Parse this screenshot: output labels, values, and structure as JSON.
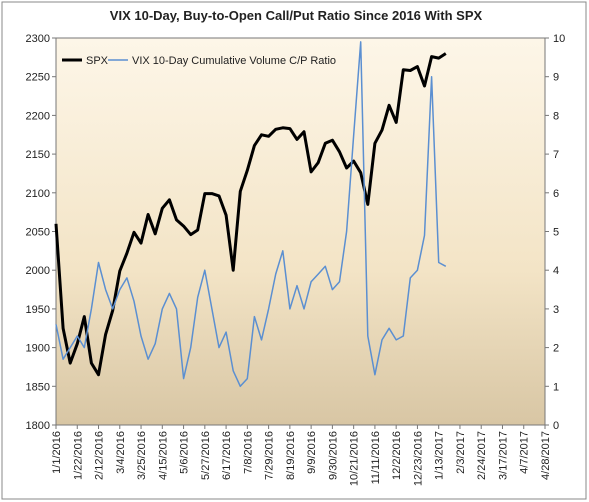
{
  "chart_data": {
    "type": "line",
    "title": "VIX 10-Day, Buy-to-Open Call/Put Ratio Since 2016 With SPX",
    "x": [
      "1/1/2016",
      "1/8/2016",
      "1/15/2016",
      "1/22/2016",
      "1/29/2016",
      "2/5/2016",
      "2/12/2016",
      "2/19/2016",
      "2/26/2016",
      "3/4/2016",
      "3/11/2016",
      "3/18/2016",
      "3/25/2016",
      "4/1/2016",
      "4/8/2016",
      "4/15/2016",
      "4/22/2016",
      "4/29/2016",
      "5/6/2016",
      "5/13/2016",
      "5/20/2016",
      "5/27/2016",
      "6/3/2016",
      "6/10/2016",
      "6/17/2016",
      "6/24/2016",
      "7/1/2016",
      "7/8/2016",
      "7/15/2016",
      "7/22/2016",
      "7/29/2016",
      "8/5/2016",
      "8/12/2016",
      "8/19/2016",
      "8/26/2016",
      "9/2/2016",
      "9/9/2016",
      "9/16/2016",
      "9/23/2016",
      "9/30/2016",
      "10/7/2016",
      "10/14/2016",
      "10/21/2016",
      "10/28/2016",
      "11/4/2016",
      "11/11/2016",
      "11/18/2016",
      "11/25/2016",
      "12/2/2016",
      "12/9/2016",
      "12/16/2016",
      "12/23/2016",
      "12/30/2016",
      "1/6/2017",
      "1/13/2017",
      "1/20/2017"
    ],
    "series": [
      {
        "name": "SPX",
        "color": "#000000",
        "axis": "y",
        "values": [
          2060,
          1925,
          1880,
          1905,
          1940,
          1880,
          1865,
          1917,
          1948,
          1999,
          2022,
          2049,
          2035,
          2072,
          2047,
          2080,
          2091,
          2065,
          2057,
          2046,
          2052,
          2099,
          2099,
          2096,
          2071,
          2000,
          2102,
          2129,
          2161,
          2175,
          2173,
          2182,
          2184,
          2183,
          2169,
          2179,
          2127,
          2139,
          2164,
          2168,
          2153,
          2132,
          2141,
          2126,
          2085,
          2164,
          2181,
          2213,
          2191,
          2259,
          2258,
          2263,
          2238,
          2276,
          2274,
          2280
        ]
      },
      {
        "name": "VIX 10-Day Cumulative Volume C/P Ratio",
        "color": "#5b8fd1",
        "axis": "y2",
        "values": [
          2.6,
          1.7,
          2.0,
          2.3,
          2.0,
          3.0,
          4.2,
          3.5,
          3.0,
          3.5,
          3.8,
          3.2,
          2.3,
          1.7,
          2.1,
          3.0,
          3.4,
          3.0,
          1.2,
          2.0,
          3.3,
          4.0,
          3.0,
          2.0,
          2.4,
          1.4,
          1.0,
          1.2,
          2.8,
          2.2,
          3.0,
          3.9,
          4.5,
          3.0,
          3.6,
          3.0,
          3.7,
          3.9,
          4.1,
          3.5,
          3.7,
          5.0,
          7.5,
          9.9,
          2.3,
          1.3,
          2.2,
          2.5,
          2.2,
          2.3,
          3.8,
          4.0,
          4.9,
          9.0,
          4.2,
          4.1
        ]
      }
    ],
    "xlim": [
      "1/1/2016",
      "4/28/2017"
    ],
    "xticks": [
      "1/1/2016",
      "1/22/2016",
      "2/12/2016",
      "3/4/2016",
      "3/25/2016",
      "4/15/2016",
      "5/6/2016",
      "5/27/2016",
      "6/17/2016",
      "7/8/2016",
      "7/29/2016",
      "8/19/2016",
      "9/9/2016",
      "9/30/2016",
      "10/21/2016",
      "11/11/2016",
      "12/2/2016",
      "12/23/2016",
      "1/13/2017",
      "2/3/2017",
      "2/24/2017",
      "3/17/2017",
      "4/7/2017",
      "4/28/2017"
    ],
    "ylim": [
      1800,
      2300
    ],
    "yticks": [
      1800,
      1850,
      1900,
      1950,
      2000,
      2050,
      2100,
      2150,
      2200,
      2250,
      2300
    ],
    "y2lim": [
      0,
      10
    ],
    "y2ticks": [
      0,
      1,
      2,
      3,
      4,
      5,
      6,
      7,
      8,
      9,
      10
    ],
    "legend": "top-left"
  }
}
